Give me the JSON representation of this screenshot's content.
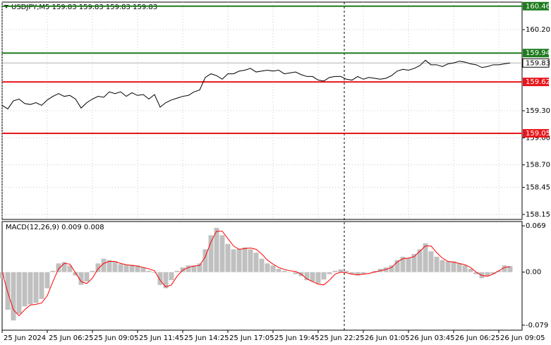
{
  "chart_data": [
    {
      "type": "line",
      "title": "USDJPY,M5  159.83 159.83 159.83 159.83",
      "categories": [
        "25 Jun 2024",
        null,
        null,
        null,
        null,
        null,
        null,
        null,
        "25 Jun 06:25",
        null,
        null,
        null,
        null,
        null,
        null,
        null,
        "25 Jun 09:05",
        null,
        null,
        null,
        null,
        null,
        null,
        null,
        "25 Jun 11:45",
        null,
        null,
        null,
        null,
        null,
        null,
        null,
        "25 Jun 14:25",
        null,
        null,
        null,
        null,
        null,
        null,
        null,
        "25 Jun 17:05",
        null,
        null,
        null,
        null,
        null,
        null,
        null,
        "25 Jun 19:45",
        null,
        null,
        null,
        null,
        null,
        null,
        null,
        "25 Jun 22:25",
        null,
        null,
        null,
        null,
        null,
        null,
        null,
        "26 Jun 01:05",
        null,
        null,
        null,
        null,
        null,
        null,
        null,
        "26 Jun 03:45",
        null,
        null,
        null,
        null,
        null,
        null,
        null,
        "26 Jun 06:25",
        null,
        null,
        null,
        null,
        null,
        null,
        null,
        "26 Jun 09:05",
        null,
        null
      ],
      "values": [
        159.36,
        159.32,
        159.41,
        159.43,
        159.38,
        159.37,
        159.39,
        159.36,
        159.42,
        159.46,
        159.49,
        159.46,
        159.47,
        159.43,
        159.33,
        159.39,
        159.43,
        159.46,
        159.45,
        159.51,
        159.49,
        159.51,
        159.46,
        159.5,
        159.47,
        159.48,
        159.43,
        159.48,
        159.34,
        159.39,
        159.42,
        159.44,
        159.46,
        159.47,
        159.51,
        159.53,
        159.67,
        159.71,
        159.69,
        159.65,
        159.71,
        159.71,
        159.74,
        159.75,
        159.77,
        159.73,
        159.74,
        159.75,
        159.74,
        159.75,
        159.71,
        159.72,
        159.73,
        159.7,
        159.68,
        159.68,
        159.64,
        159.63,
        159.67,
        159.68,
        159.68,
        159.65,
        159.64,
        159.68,
        159.65,
        159.67,
        159.66,
        159.65,
        159.66,
        159.69,
        159.74,
        159.76,
        159.75,
        159.77,
        159.8,
        159.86,
        159.81,
        159.81,
        159.79,
        159.82,
        159.83,
        159.85,
        159.84,
        159.82,
        159.81,
        159.78,
        159.79,
        159.81,
        159.81,
        159.82,
        159.83
      ],
      "color": "#000000",
      "ylim": [
        158.095,
        160.505
      ],
      "yticks": [
        {
          "value": 160.2,
          "label": "160.20"
        },
        {
          "value": 159.3,
          "label": "159.30"
        },
        {
          "value": 159,
          "label": "159.00"
        },
        {
          "value": 158.7,
          "label": "158.70"
        },
        158.45,
        158.15
      ],
      "levels": [
        {
          "value": 160.46,
          "color": "#1e7b1e"
        },
        {
          "value": 159.94,
          "color": "#1e7b1e"
        },
        {
          "value": 159.62,
          "color": "#e8161b"
        },
        {
          "value": 159.05,
          "color": "#e8161b"
        }
      ],
      "last_price": 159.83,
      "grid": true
    },
    {
      "type": "macd",
      "title": "MACD(12,26,9) 0.009 0.008",
      "histogram": {
        "color": "#c0c0c0",
        "values": [
          -0.009,
          -0.056,
          -0.072,
          -0.062,
          -0.051,
          -0.048,
          -0.046,
          -0.04,
          -0.024,
          0.002,
          0.013,
          0.015,
          0.01,
          -0.005,
          -0.019,
          -0.014,
          0.002,
          0.013,
          0.02,
          0.018,
          0.016,
          0.012,
          0.011,
          0.011,
          0.01,
          0.007,
          0.002,
          -0.001,
          -0.019,
          -0.024,
          -0.012,
          0.002,
          0.007,
          0.01,
          0.01,
          0.013,
          0.034,
          0.055,
          0.066,
          0.055,
          0.042,
          0.034,
          0.035,
          0.037,
          0.034,
          0.029,
          0.02,
          0.013,
          0.01,
          0.005,
          0.002,
          0.0,
          -0.003,
          -0.006,
          -0.012,
          -0.014,
          -0.017,
          -0.011,
          -0.003,
          0.002,
          0.004,
          0.002,
          -0.003,
          -0.005,
          -0.003,
          0.0,
          0.002,
          0.005,
          0.007,
          0.01,
          0.018,
          0.023,
          0.021,
          0.027,
          0.034,
          0.043,
          0.031,
          0.023,
          0.018,
          0.016,
          0.016,
          0.013,
          0.01,
          0.005,
          -0.003,
          -0.009,
          -0.006,
          -0.003,
          0.002,
          0.01,
          0.009
        ]
      },
      "signal": {
        "color": "#ff0000",
        "values": [
          0.0,
          -0.03,
          -0.056,
          -0.065,
          -0.056,
          -0.049,
          -0.048,
          -0.046,
          -0.035,
          -0.014,
          0.005,
          0.013,
          0.012,
          -0.001,
          -0.014,
          -0.017,
          -0.009,
          0.005,
          0.013,
          0.016,
          0.016,
          0.013,
          0.011,
          0.01,
          0.009,
          0.007,
          0.005,
          0.002,
          -0.012,
          -0.022,
          -0.019,
          -0.006,
          0.003,
          0.007,
          0.009,
          0.01,
          0.023,
          0.045,
          0.061,
          0.061,
          0.05,
          0.039,
          0.034,
          0.035,
          0.036,
          0.034,
          0.027,
          0.018,
          0.012,
          0.007,
          0.004,
          0.002,
          0.001,
          -0.003,
          -0.01,
          -0.014,
          -0.018,
          -0.019,
          -0.012,
          -0.003,
          0.0,
          -0.001,
          -0.003,
          -0.004,
          -0.003,
          -0.002,
          0.0,
          0.002,
          0.004,
          0.007,
          0.015,
          0.02,
          0.021,
          0.023,
          0.031,
          0.039,
          0.039,
          0.029,
          0.021,
          0.016,
          0.015,
          0.013,
          0.011,
          0.007,
          0.0,
          -0.005,
          -0.006,
          -0.003,
          0.002,
          0.007,
          0.008
        ]
      },
      "ylim": [
        -0.0865,
        0.0754
      ],
      "yticks": [
        0.069,
        {
          "value": 0,
          "label": "0.00"
        },
        -0.079
      ],
      "grid": false
    }
  ]
}
